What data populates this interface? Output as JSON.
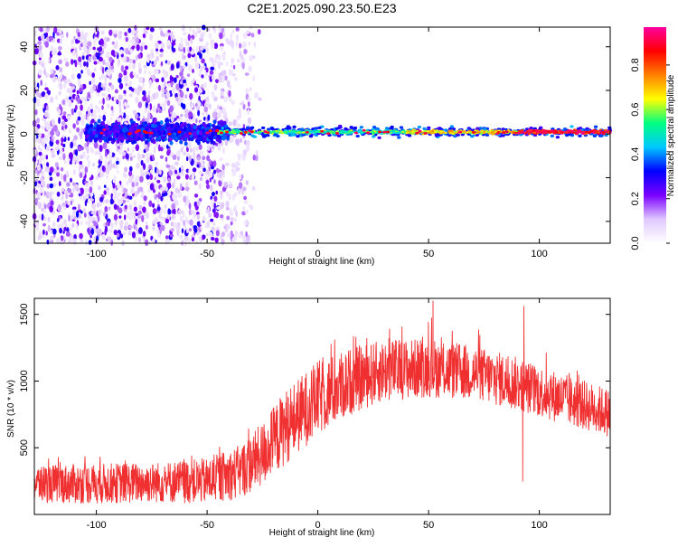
{
  "figure": {
    "title": "C2E1.2025.090.23.50.E23"
  },
  "chart_data": [
    {
      "type": "heatmap",
      "name": "spectrogram",
      "xlabel": "Height of straight line (km)",
      "ylabel": "Frequency (Hz)",
      "xlim": [
        -128,
        132
      ],
      "ylim": [
        -50,
        49
      ],
      "xticks": [
        -100,
        -50,
        0,
        50,
        100
      ],
      "yticks": [
        -40,
        -20,
        0,
        20,
        40
      ],
      "colorbar": {
        "label": "Normalized spectral amplitude",
        "range": [
          0.0,
          0.97
        ],
        "ticks": [
          0.0,
          0.2,
          0.4,
          0.6,
          0.8
        ],
        "colormap": [
          "#ffffff",
          "#e0c8ff",
          "#7a00ff",
          "#0000ff",
          "#00c8ff",
          "#00ff80",
          "#ffff00",
          "#ff8000",
          "#ff0000",
          "#ff00a0"
        ]
      },
      "features": {
        "noisy_region_x": [
          -128,
          -45
        ],
        "noise_fade_x": [
          -45,
          -25
        ],
        "carrier_frequency_hz": 1,
        "carrier_halfwidth_hz": 3,
        "carrier_peak_x": [
          90,
          132
        ]
      }
    },
    {
      "type": "line",
      "name": "snr",
      "xlabel": "Height of straight line (km)",
      "ylabel": "SNR (10 * v/v)",
      "xlim": [
        -128,
        132
      ],
      "ylim": [
        0,
        1620
      ],
      "xticks": [
        -100,
        -50,
        0,
        50,
        100
      ],
      "yticks": [
        500,
        1000,
        1500
      ],
      "color": "#f03030",
      "envelope": {
        "x": [
          -128,
          -100,
          -75,
          -50,
          -35,
          -25,
          -15,
          0,
          15,
          30,
          50,
          70,
          90,
          110,
          132
        ],
        "mean": [
          230,
          230,
          240,
          250,
          320,
          450,
          650,
          870,
          1000,
          1080,
          1100,
          1060,
          980,
          870,
          760
        ],
        "spread": [
          140,
          150,
          150,
          170,
          200,
          240,
          280,
          280,
          250,
          230,
          220,
          210,
          200,
          190,
          180
        ]
      },
      "spikes": [
        {
          "x": 52,
          "y": 1600
        },
        {
          "x": 93,
          "y": 1560
        },
        {
          "x": 92.5,
          "y": 250
        }
      ]
    }
  ]
}
